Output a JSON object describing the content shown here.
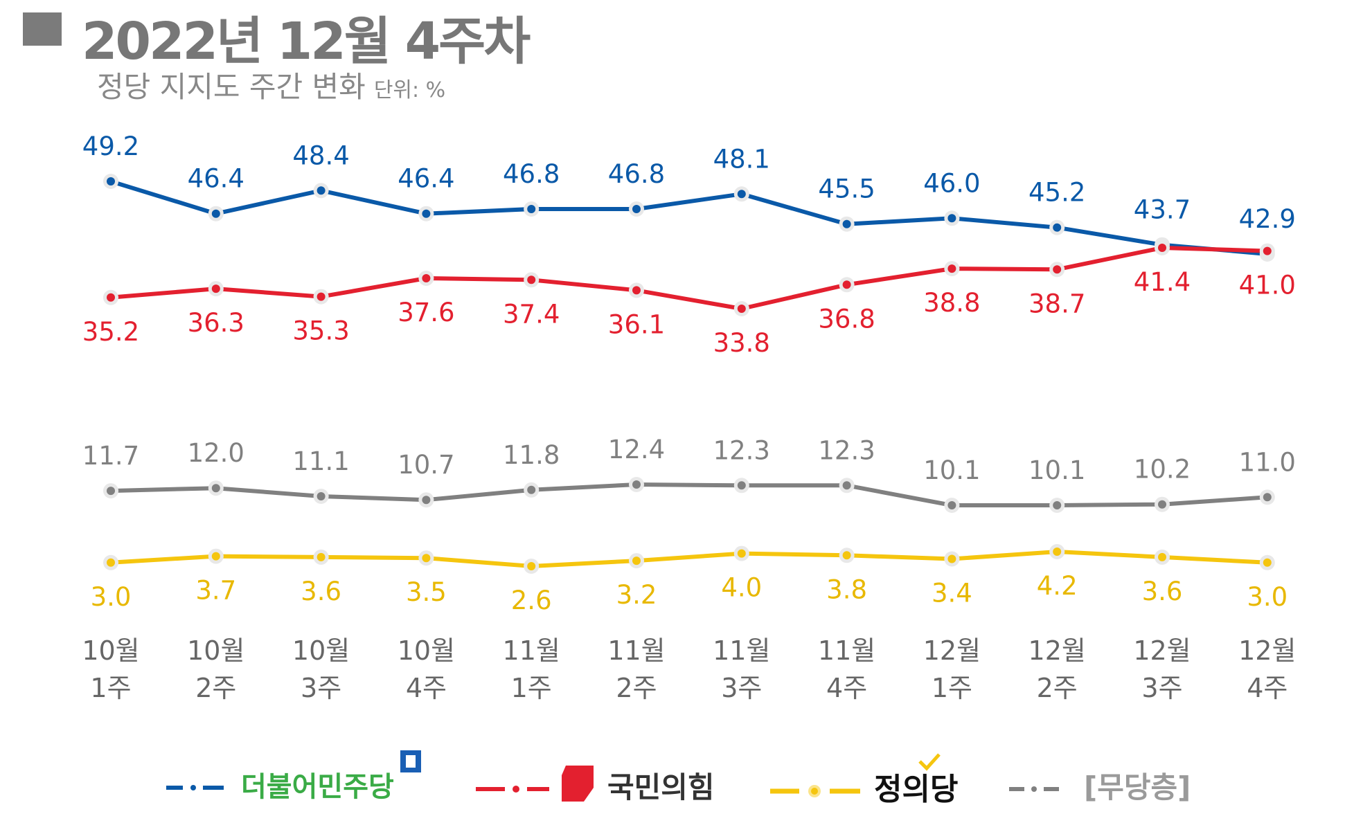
{
  "header": {
    "title": "2022년 12월 4주차",
    "subtitle": "정당 지지도 주간 변화",
    "unit": "단위: %"
  },
  "chart_data": {
    "type": "line",
    "title": "정당 지지도 주간 변화",
    "ylabel": "단위: %",
    "categories": [
      [
        "10월",
        "1주"
      ],
      [
        "10월",
        "2주"
      ],
      [
        "10월",
        "3주"
      ],
      [
        "10월",
        "4주"
      ],
      [
        "11월",
        "1주"
      ],
      [
        "11월",
        "2주"
      ],
      [
        "11월",
        "3주"
      ],
      [
        "11월",
        "4주"
      ],
      [
        "12월",
        "1주"
      ],
      [
        "12월",
        "2주"
      ],
      [
        "12월",
        "3주"
      ],
      [
        "12월",
        "4주"
      ]
    ],
    "series": [
      {
        "name": "더불어민주당",
        "color": "#0a59a8",
        "label_pos": "above",
        "values": [
          49.2,
          46.4,
          48.4,
          46.4,
          46.8,
          46.8,
          48.1,
          45.5,
          46.0,
          45.2,
          43.7,
          42.9
        ],
        "labels": [
          "49.2",
          "46.4",
          "48.4",
          "46.4",
          "46.8",
          "46.8",
          "48.1",
          "45.5",
          "46.0",
          "45.2",
          "43.7",
          "42.9"
        ]
      },
      {
        "name": "국민의힘",
        "color": "#e3202f",
        "label_pos": "below",
        "values": [
          35.2,
          36.3,
          35.3,
          37.6,
          37.4,
          36.1,
          33.8,
          36.8,
          38.8,
          38.7,
          41.4,
          41.0
        ],
        "labels": [
          "35.2",
          "36.3",
          "35.3",
          "37.6",
          "37.4",
          "36.1",
          "33.8",
          "36.8",
          "38.8",
          "38.7",
          "41.4",
          "41.0"
        ]
      },
      {
        "name": "[무당층]",
        "color": "#808080",
        "label_pos": "above",
        "values": [
          11.7,
          12.0,
          11.1,
          10.7,
          11.8,
          12.4,
          12.3,
          12.3,
          10.1,
          10.1,
          10.2,
          11.0
        ],
        "labels": [
          "11.7",
          "12.0",
          "11.1",
          "10.7",
          "11.8",
          "12.4",
          "12.3",
          "12.3",
          "10.1",
          "10.1",
          "10.2",
          "11.0"
        ]
      },
      {
        "name": "정의당",
        "color": "#f5c50e",
        "label_pos": "below",
        "values": [
          3.0,
          3.7,
          3.6,
          3.5,
          2.6,
          3.2,
          4.0,
          3.8,
          3.4,
          4.2,
          3.6,
          3.0
        ],
        "labels": [
          "3.0",
          "3.7",
          "3.6",
          "3.5",
          "2.6",
          "3.2",
          "4.0",
          "3.8",
          "3.4",
          "4.2",
          "3.6",
          "3.0"
        ]
      }
    ],
    "legend": [
      "더불어민주당",
      "국민의힘",
      "정의당",
      "[무당층]"
    ],
    "legend_position": "bottom"
  },
  "legend": {
    "dem": "더불어민주당",
    "ppp": "국민의힘",
    "justice": "정의당",
    "independent": "[무당층]"
  }
}
